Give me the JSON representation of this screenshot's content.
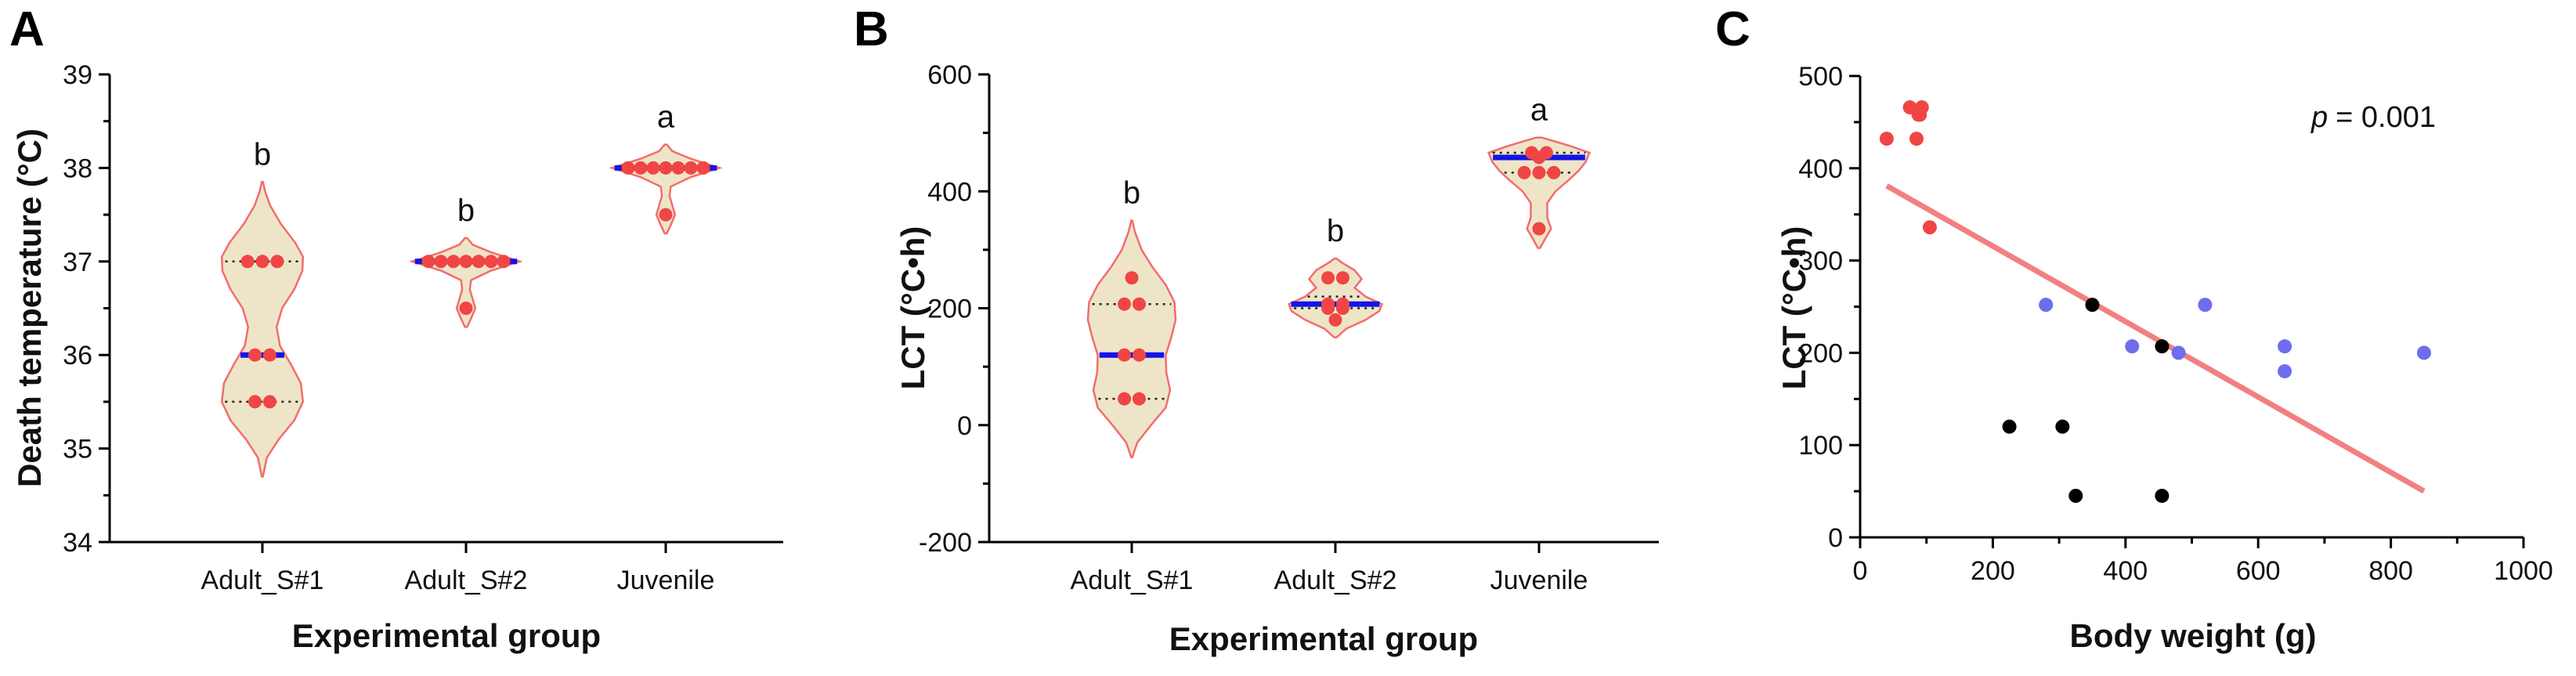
{
  "chart_data": [
    {
      "panel": "A",
      "type": "violin",
      "ylabel": "Death temperature (°C)",
      "xlabel": "Experimental group",
      "ylim": [
        34,
        39
      ],
      "yticks": [
        "34",
        "35",
        "36",
        "37",
        "38",
        "39"
      ],
      "groups": [
        {
          "name": "Adult_S#1",
          "letter": "b",
          "median": 36.0,
          "q1": 35.5,
          "q3": 37.0,
          "kde_min": 34.7,
          "kde_max": 37.85,
          "points": [
            37,
            37,
            37,
            36,
            36,
            35.5,
            35.5
          ],
          "profile": [
            [
              34.7,
              0.01
            ],
            [
              34.9,
              0.08
            ],
            [
              35.1,
              0.3
            ],
            [
              35.3,
              0.58
            ],
            [
              35.5,
              0.74
            ],
            [
              35.7,
              0.7
            ],
            [
              35.9,
              0.52
            ],
            [
              36.1,
              0.32
            ],
            [
              36.3,
              0.26
            ],
            [
              36.5,
              0.36
            ],
            [
              36.7,
              0.58
            ],
            [
              36.9,
              0.73
            ],
            [
              37.05,
              0.74
            ],
            [
              37.2,
              0.6
            ],
            [
              37.4,
              0.34
            ],
            [
              37.6,
              0.14
            ],
            [
              37.75,
              0.05
            ],
            [
              37.85,
              0.01
            ]
          ]
        },
        {
          "name": "Adult_S#2",
          "letter": "b",
          "median": 37.0,
          "q1": 37.0,
          "q3": 37.0,
          "kde_min": 36.3,
          "kde_max": 37.25,
          "points": [
            37,
            37,
            37,
            37,
            37,
            37,
            37,
            36.5
          ],
          "profile": [
            [
              36.3,
              0.02
            ],
            [
              36.4,
              0.1
            ],
            [
              36.5,
              0.17
            ],
            [
              36.6,
              0.12
            ],
            [
              36.7,
              0.07
            ],
            [
              36.8,
              0.09
            ],
            [
              36.9,
              0.45
            ],
            [
              37.0,
              0.98
            ],
            [
              37.1,
              0.45
            ],
            [
              37.18,
              0.12
            ],
            [
              37.25,
              0.02
            ]
          ]
        },
        {
          "name": "Juvenile",
          "letter": "a",
          "median": 38.0,
          "q1": 38.0,
          "q3": 38.0,
          "kde_min": 37.3,
          "kde_max": 38.25,
          "points": [
            38,
            38,
            38,
            38,
            38,
            38,
            38,
            37.5
          ],
          "profile": [
            [
              37.3,
              0.02
            ],
            [
              37.4,
              0.1
            ],
            [
              37.5,
              0.17
            ],
            [
              37.6,
              0.12
            ],
            [
              37.7,
              0.07
            ],
            [
              37.8,
              0.09
            ],
            [
              37.9,
              0.45
            ],
            [
              38.0,
              0.98
            ],
            [
              38.1,
              0.45
            ],
            [
              38.18,
              0.12
            ],
            [
              38.25,
              0.02
            ]
          ]
        }
      ]
    },
    {
      "panel": "B",
      "type": "violin",
      "ylabel": "LCT (°C•h)",
      "xlabel": "Experimental group",
      "ylim": [
        -200,
        600
      ],
      "yticks": [
        "-200",
        "0",
        "200",
        "400",
        "600"
      ],
      "groups": [
        {
          "name": "Adult_S#1",
          "letter": "b",
          "median": 120,
          "q1": 45,
          "q3": 207,
          "kde_min": -55,
          "kde_max": 350,
          "points": [
            252,
            207,
            207,
            120,
            120,
            45,
            45
          ],
          "profile": [
            [
              -55,
              0.01
            ],
            [
              -30,
              0.1
            ],
            [
              0,
              0.35
            ],
            [
              30,
              0.62
            ],
            [
              60,
              0.7
            ],
            [
              90,
              0.63
            ],
            [
              120,
              0.62
            ],
            [
              150,
              0.72
            ],
            [
              180,
              0.8
            ],
            [
              210,
              0.78
            ],
            [
              240,
              0.62
            ],
            [
              270,
              0.38
            ],
            [
              300,
              0.18
            ],
            [
              330,
              0.06
            ],
            [
              350,
              0.01
            ]
          ]
        },
        {
          "name": "Adult_S#2",
          "letter": "b",
          "median": 207,
          "q1": 200,
          "q3": 220,
          "kde_min": 150,
          "kde_max": 285,
          "points": [
            252,
            252,
            207,
            207,
            200,
            200,
            180
          ],
          "profile": [
            [
              150,
              0.02
            ],
            [
              165,
              0.2
            ],
            [
              180,
              0.55
            ],
            [
              195,
              0.8
            ],
            [
              207,
              0.85
            ],
            [
              220,
              0.55
            ],
            [
              235,
              0.35
            ],
            [
              250,
              0.48
            ],
            [
              265,
              0.35
            ],
            [
              278,
              0.12
            ],
            [
              285,
              0.02
            ]
          ]
        },
        {
          "name": "Juvenile",
          "letter": "a",
          "median": 458,
          "q1": 432,
          "q3": 466,
          "kde_min": 303,
          "kde_max": 492,
          "points": [
            466,
            466,
            458,
            432,
            432,
            432,
            336
          ],
          "profile": [
            [
              303,
              0.02
            ],
            [
              320,
              0.12
            ],
            [
              336,
              0.22
            ],
            [
              355,
              0.15
            ],
            [
              380,
              0.15
            ],
            [
              400,
              0.3
            ],
            [
              420,
              0.55
            ],
            [
              435,
              0.72
            ],
            [
              450,
              0.85
            ],
            [
              466,
              0.92
            ],
            [
              478,
              0.55
            ],
            [
              492,
              0.05
            ]
          ]
        }
      ]
    },
    {
      "panel": "C",
      "type": "scatter",
      "xlabel": "Body weight (g)",
      "ylabel": "LCT (°C•h)",
      "xlim": [
        0,
        1000
      ],
      "ylim": [
        0,
        500
      ],
      "xticks": [
        "0",
        "200",
        "400",
        "600",
        "800",
        "1000"
      ],
      "yticks": [
        "0",
        "100",
        "200",
        "300",
        "400",
        "500"
      ],
      "annotation_p": "p",
      "annotation_value": "= 0.001",
      "regression": {
        "x1": 40,
        "y1": 381,
        "x2": 850,
        "y2": 50
      },
      "series": [
        {
          "name": "Juvenile",
          "color": "#f04545",
          "points": [
            [
              40,
              432
            ],
            [
              75,
              466
            ],
            [
              85,
              432
            ],
            [
              88,
              458
            ],
            [
              93,
              466
            ],
            [
              90,
              458
            ],
            [
              105,
              336
            ]
          ]
        },
        {
          "name": "Adult_S#1",
          "color": "#000000",
          "points": [
            [
              225,
              120
            ],
            [
              305,
              120
            ],
            [
              325,
              45
            ],
            [
              350,
              252
            ],
            [
              455,
              207
            ],
            [
              455,
              45
            ]
          ]
        },
        {
          "name": "Adult_S#2",
          "color": "#6d6dee",
          "points": [
            [
              280,
              252
            ],
            [
              410,
              207
            ],
            [
              480,
              200
            ],
            [
              520,
              252
            ],
            [
              640,
              207
            ],
            [
              640,
              180
            ],
            [
              850,
              200
            ]
          ]
        }
      ]
    }
  ]
}
